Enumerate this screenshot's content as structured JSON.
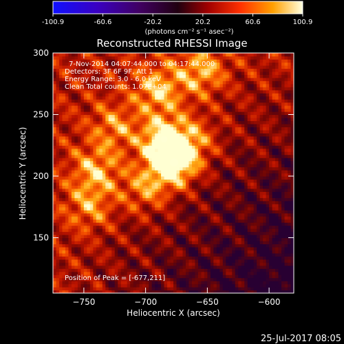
{
  "chart_data": {
    "type": "heatmap",
    "title": "Reconstructed RHESSI Image",
    "xlabel": "Heliocentric X (arcsec)",
    "ylabel": "Heliocentric Y (arcsec)",
    "xlim": [
      -775,
      -580
    ],
    "ylim": [
      105,
      300
    ],
    "xticks": [
      -750,
      -700,
      -650,
      -600
    ],
    "yticks": [
      150,
      200,
      250,
      300
    ],
    "colorbar": {
      "min": -100.9,
      "max": 100.9,
      "ticks": [
        "-100.9",
        "-60.6",
        "-20.2",
        "20.2",
        "60.6",
        "100.9"
      ],
      "units_label": "(photons cm⁻² s⁻¹ asec⁻²)"
    },
    "peak": {
      "x": -677,
      "y": 211
    },
    "bright_regions": [
      {
        "x": -677,
        "y": 211,
        "rel": 1.0
      },
      {
        "x": -685,
        "y": 230,
        "rel": 0.75
      },
      {
        "x": -690,
        "y": 270,
        "rel": 0.6
      },
      {
        "x": -655,
        "y": 285,
        "rel": 0.55
      },
      {
        "x": -740,
        "y": 205,
        "rel": 0.55
      },
      {
        "x": -745,
        "y": 175,
        "rel": 0.45
      },
      {
        "x": -700,
        "y": 190,
        "rel": 0.5
      },
      {
        "x": -725,
        "y": 240,
        "rel": 0.45
      },
      {
        "x": -660,
        "y": 230,
        "rel": 0.4
      }
    ],
    "annotations": [
      "7-Nov-2014 04:07:44.000 to 04:17:44.000",
      "Detectors: 3F 6F 9F, Att 1",
      "Energy Range: 3.0 - 6.0 keV",
      "Clean     Total counts: 1.07E+04",
      "Position of Peak = [-677,211]"
    ],
    "footer_date": "25-Jul-2017 08:05"
  }
}
